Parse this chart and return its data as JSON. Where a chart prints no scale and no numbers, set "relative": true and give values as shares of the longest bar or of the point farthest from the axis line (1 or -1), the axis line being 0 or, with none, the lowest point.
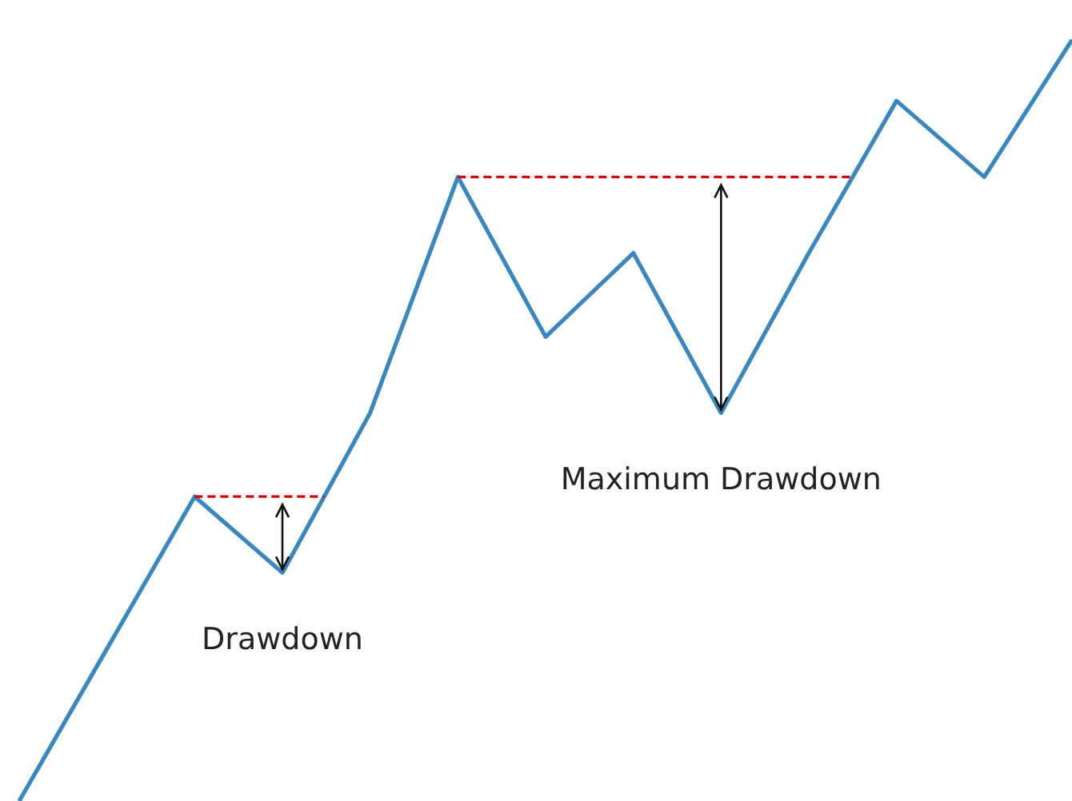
{
  "chart_data": {
    "type": "line",
    "relative": true,
    "categories": [
      null,
      null,
      null,
      null,
      null,
      null,
      null,
      null,
      null,
      null,
      null,
      null,
      null
    ],
    "series": [
      {
        "color": "#3a87c0",
        "values": [
          0,
          0.2,
          0.4,
          0.3,
          0.51,
          0.82,
          0.61,
          0.72,
          0.51,
          0.72,
          0.92,
          0.82,
          1
        ]
      }
    ],
    "ref_lines": [
      {
        "axis": "y",
        "value": 0.4,
        "color": "#cc0000",
        "line_style": "dashed"
      },
      {
        "axis": "y",
        "value": 0.82,
        "color": "#cc0000",
        "line_style": "dashed"
      }
    ],
    "annotations": [
      "Drawdown",
      "Maximum Drawdown"
    ]
  }
}
